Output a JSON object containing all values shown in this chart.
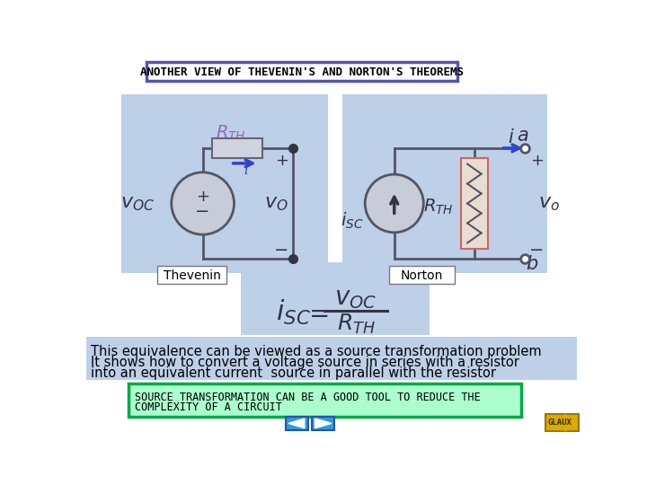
{
  "title": "ANOTHER VIEW OF THEVENIN'S AND NORTON'S THEOREMS",
  "title_bg": "#ffffff",
  "title_border": "#5555aa",
  "slide_bg": "#ffffff",
  "circuit_bg": "#bdd0e8",
  "formula_bg": "#bdd0e8",
  "text_bg": "#bdd0e8",
  "source_box_bg": "#aaffcc",
  "source_box_border": "#00aa44",
  "body_text_line1": "This equivalence can be viewed as a source transformation problem",
  "body_text_line2": "It shows how to convert a voltage source in series with a resistor",
  "body_text_line3": "into an equivalent current  source in parallel with the resistor",
  "source_text_line1": "SOURCE TRANSFORMATION CAN BE A GOOD TOOL TO REDUCE THE",
  "source_text_line2": "COMPLEXITY OF A CIRCUIT",
  "thevenin_label": "Thevenin",
  "norton_label": "Norton",
  "nav_color": "#3399dd",
  "glaux_bg": "#ddaa00",
  "glaux_border": "#997700",
  "glaux_text": "GLAUX",
  "wire_color": "#555566",
  "source_ellipse_color": "#c8ccd8",
  "arrow_color": "#3344cc",
  "rth_border": "#cc6666",
  "rth_fill": "#e8ddd0",
  "purple": "#9966bb"
}
